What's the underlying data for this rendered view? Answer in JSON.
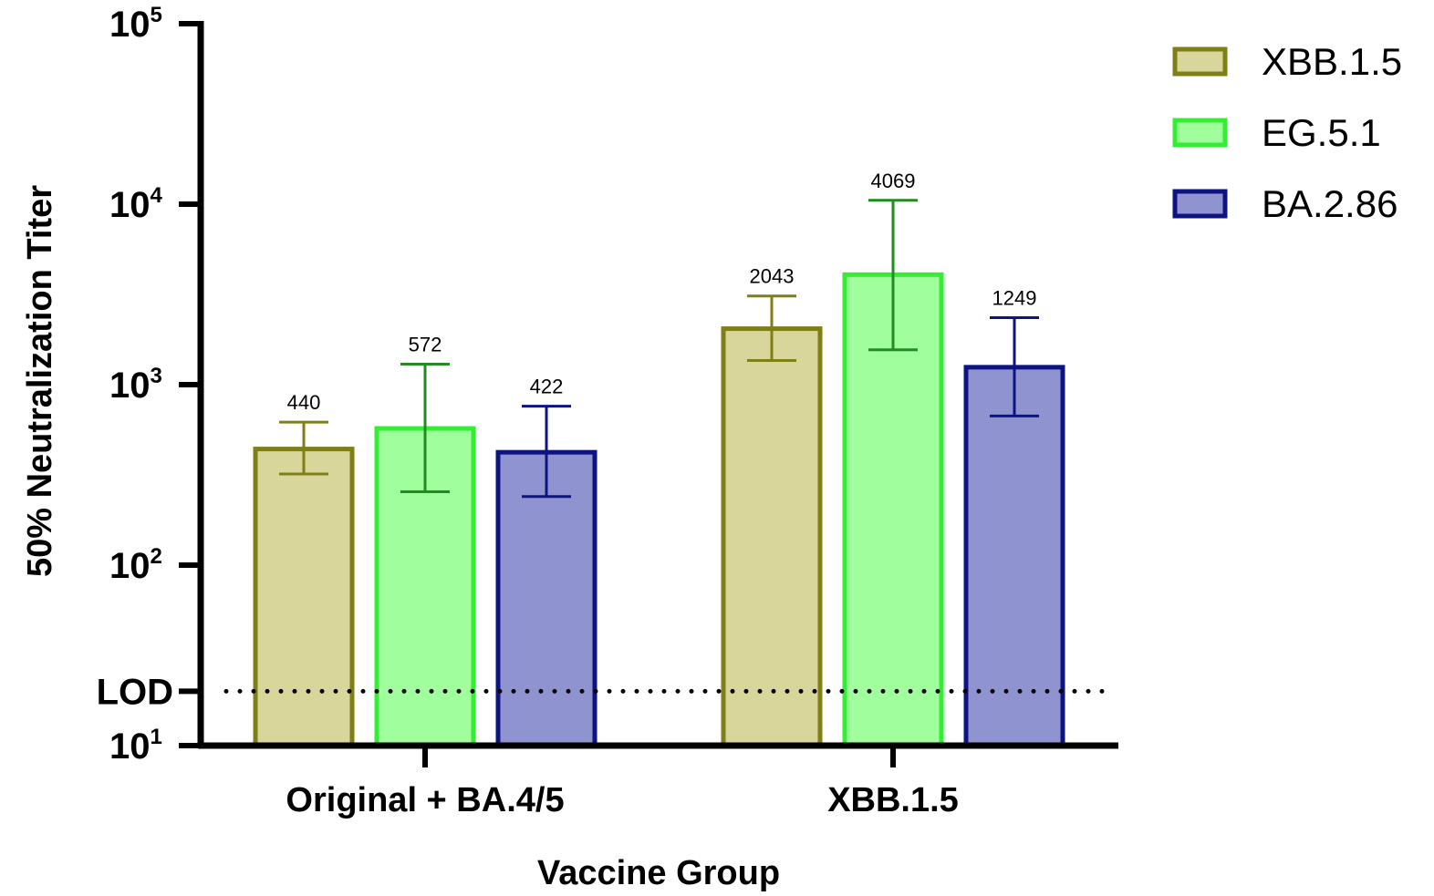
{
  "chart_data": {
    "type": "bar",
    "title": "",
    "xlabel": "Vaccine Group",
    "ylabel": "50% Neutralization Titer",
    "yscale": "log",
    "ylim": [
      10,
      100000
    ],
    "y_ticks": [
      {
        "base": "10",
        "exp": "1",
        "value": 10
      },
      {
        "base": "10",
        "exp": "2",
        "value": 100
      },
      {
        "base": "10",
        "exp": "3",
        "value": 1000
      },
      {
        "base": "10",
        "exp": "4",
        "value": 10000
      },
      {
        "base": "10",
        "exp": "5",
        "value": 100000
      }
    ],
    "lod": {
      "label": "LOD",
      "value": 20
    },
    "categories": [
      "Original + BA.4/5",
      "XBB.1.5"
    ],
    "series": [
      {
        "name": "XBB.1.5",
        "fill": "#d8d69a",
        "stroke": "#7f7f17",
        "values": [
          440,
          2043
        ],
        "err_low": [
          320,
          1360
        ],
        "err_high": [
          620,
          3100
        ],
        "labels": [
          "440",
          "2043"
        ]
      },
      {
        "name": "EG.5.1",
        "fill": "#a0ff9c",
        "stroke": "#33ee33",
        "err_color": "#228b22",
        "values": [
          572,
          4069
        ],
        "err_low": [
          255,
          1560
        ],
        "err_high": [
          1300,
          10500
        ],
        "labels": [
          "572",
          "4069"
        ]
      },
      {
        "name": "BA.2.86",
        "fill": "#8f94d1",
        "stroke": "#0d1480",
        "values": [
          422,
          1249
        ],
        "err_low": [
          240,
          670
        ],
        "err_high": [
          760,
          2350
        ],
        "labels": [
          "422",
          "1249"
        ]
      }
    ],
    "legend": "top-right",
    "grid": false
  }
}
